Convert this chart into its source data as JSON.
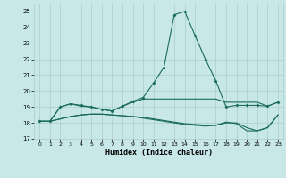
{
  "xlabel": "Humidex (Indice chaleur)",
  "bg_color": "#c8e8e8",
  "grid_color": "#aacccc",
  "line_color": "#1a6b5a",
  "xlim": [
    -0.5,
    23.5
  ],
  "ylim": [
    17,
    25.5
  ],
  "xticks": [
    0,
    1,
    2,
    3,
    4,
    5,
    6,
    7,
    8,
    9,
    10,
    11,
    12,
    13,
    14,
    15,
    16,
    17,
    18,
    19,
    20,
    21,
    22,
    23
  ],
  "yticks": [
    17,
    18,
    19,
    20,
    21,
    22,
    23,
    24,
    25
  ],
  "line1_y": [
    18.1,
    18.1,
    19.0,
    19.2,
    19.1,
    19.0,
    18.85,
    18.75,
    19.05,
    19.35,
    19.6,
    20.5,
    21.5,
    24.8,
    25.0,
    23.5,
    22.0,
    20.65,
    19.0,
    19.1,
    19.1,
    19.1,
    19.05,
    19.3
  ],
  "line2_y": [
    18.1,
    18.1,
    19.0,
    19.2,
    19.05,
    19.0,
    18.85,
    18.75,
    19.05,
    19.3,
    19.5,
    19.5,
    19.5,
    19.5,
    19.5,
    19.5,
    19.5,
    19.5,
    19.3,
    19.3,
    19.3,
    19.3,
    19.05,
    19.3
  ],
  "line3_y": [
    18.1,
    18.1,
    18.25,
    18.4,
    18.5,
    18.55,
    18.55,
    18.5,
    18.45,
    18.4,
    18.35,
    18.25,
    18.15,
    18.05,
    17.95,
    17.9,
    17.85,
    17.85,
    18.0,
    18.0,
    17.7,
    17.5,
    17.7,
    18.5
  ],
  "line4_y": [
    18.1,
    18.1,
    18.25,
    18.4,
    18.5,
    18.55,
    18.55,
    18.5,
    18.45,
    18.4,
    18.3,
    18.2,
    18.1,
    18.0,
    17.9,
    17.85,
    17.8,
    17.85,
    18.05,
    17.95,
    17.5,
    17.5,
    17.7,
    18.5
  ],
  "fig_width": 3.2,
  "fig_height": 2.0,
  "dpi": 100
}
